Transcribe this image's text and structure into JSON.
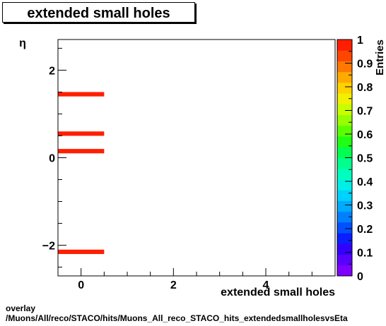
{
  "title": "extended small holes",
  "footer": {
    "line1": "overlay",
    "line2": "/Muons/All/reco/STACO/hits/Muons_All_reco_STACO_hits_extendedsmallholesvsEta"
  },
  "chart_data": {
    "type": "heatmap",
    "title": "extended small holes",
    "xlabel": "extended small holes",
    "ylabel": "η",
    "zlabel": "Entries",
    "xlim": [
      -0.5,
      5.5
    ],
    "ylim": [
      -2.7,
      2.7
    ],
    "zlim": [
      0,
      1
    ],
    "x_ticks": [
      0,
      2,
      4
    ],
    "y_ticks": [
      -2,
      0,
      2
    ],
    "z_ticks": [
      0,
      0.1,
      0.2,
      0.3,
      0.4,
      0.5,
      0.6,
      0.7,
      0.8,
      0.9,
      1
    ],
    "cells": [
      {
        "x": [
          -0.5,
          0.5
        ],
        "y": [
          1.4,
          1.5
        ],
        "value": 1
      },
      {
        "x": [
          -0.5,
          0.5
        ],
        "y": [
          0.5,
          0.6
        ],
        "value": 1
      },
      {
        "x": [
          -0.5,
          0.5
        ],
        "y": [
          0.1,
          0.2
        ],
        "value": 1
      },
      {
        "x": [
          -0.5,
          0.5
        ],
        "y": [
          -2.2,
          -2.1
        ],
        "value": 1
      }
    ],
    "colors": [
      "#7f00ff",
      "#5a00ff",
      "#3300ff",
      "#0a1eff",
      "#0050ff",
      "#0080ff",
      "#00aaff",
      "#00d2ff",
      "#00f0e6",
      "#00ffbe",
      "#00ff8c",
      "#00ff50",
      "#1eff14",
      "#5aff00",
      "#96ff00",
      "#c8ff00",
      "#f0f000",
      "#ffd200",
      "#ffaa00",
      "#ff7800",
      "#ff4600",
      "#ff1e00"
    ],
    "grid": false
  }
}
